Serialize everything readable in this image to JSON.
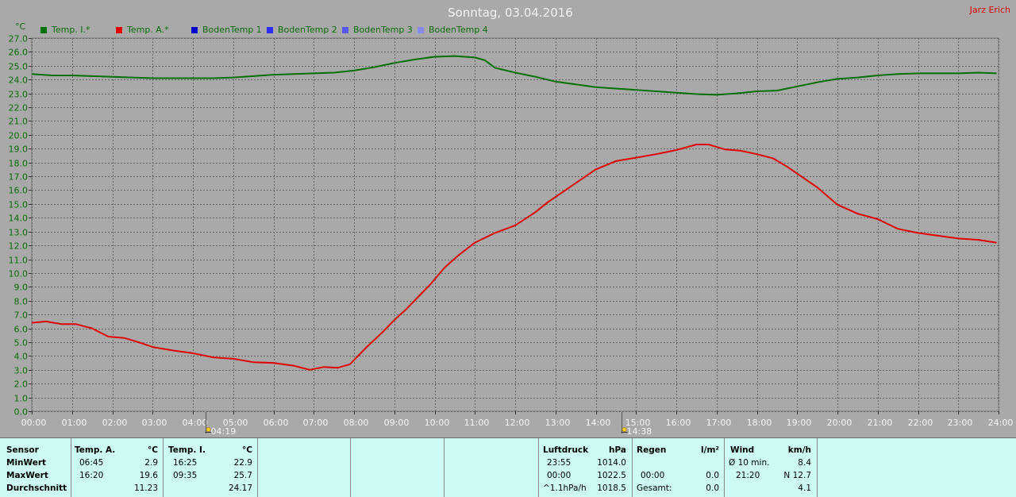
{
  "header": {
    "title": "Sonntag, 03.04.2016",
    "author": "Jarz Erich"
  },
  "legend": [
    {
      "label": "Temp. I.*",
      "color": "#007000"
    },
    {
      "label": "Temp. A.*",
      "color": "#e00000"
    },
    {
      "label": "BodenTemp 1",
      "color": "#0000c8"
    },
    {
      "label": "BodenTemp 2",
      "color": "#2c2cf0"
    },
    {
      "label": "BodenTemp 3",
      "color": "#5858f0"
    },
    {
      "label": "BodenTemp 4",
      "color": "#8888f0"
    }
  ],
  "chart_data": {
    "type": "line",
    "title": "Sonntag, 03.04.2016",
    "ylabel": "°C",
    "ylim": [
      0,
      27
    ],
    "xlim": [
      0,
      24
    ],
    "y_ticks": [
      "0.0",
      "1.0",
      "2.0",
      "3.0",
      "4.0",
      "5.0",
      "6.0",
      "7.0",
      "8.0",
      "9.0",
      "10.0",
      "11.0",
      "12.0",
      "13.0",
      "14.0",
      "15.0",
      "16.0",
      "17.0",
      "18.0",
      "19.0",
      "20.0",
      "21.0",
      "22.0",
      "23.0",
      "24.0",
      "25.0",
      "26.0",
      "27.0"
    ],
    "x_ticks": [
      "00:00",
      "01:00",
      "02:00",
      "03:00",
      "04:00",
      "05:00",
      "06:00",
      "07:00",
      "08:00",
      "09:00",
      "10:00",
      "11:00",
      "12:00",
      "13:00",
      "14:00",
      "15:00",
      "16:00",
      "17:00",
      "18:00",
      "19:00",
      "20:00",
      "21:00",
      "22:00",
      "23:00",
      "24:00"
    ],
    "grid": true,
    "legend_position": "top-left",
    "series": [
      {
        "name": "Temp. I.*",
        "color": "#007000",
        "x": [
          0,
          0.5,
          1,
          1.5,
          2,
          2.5,
          3,
          3.5,
          4,
          4.5,
          5,
          5.5,
          6,
          6.5,
          7,
          7.5,
          8,
          8.5,
          9,
          9.5,
          10,
          10.5,
          11,
          11.25,
          11.5,
          12,
          12.5,
          13,
          13.5,
          14,
          14.5,
          15,
          15.5,
          16,
          16.5,
          17,
          17.5,
          18,
          18.5,
          19,
          19.5,
          20,
          20.5,
          21,
          21.5,
          22,
          22.5,
          23,
          23.5,
          23.95
        ],
        "y": [
          24.4,
          24.3,
          24.3,
          24.25,
          24.2,
          24.15,
          24.1,
          24.1,
          24.1,
          24.1,
          24.15,
          24.25,
          24.35,
          24.4,
          24.45,
          24.5,
          24.65,
          24.9,
          25.2,
          25.45,
          25.65,
          25.7,
          25.6,
          25.4,
          24.85,
          24.5,
          24.2,
          23.85,
          23.65,
          23.45,
          23.35,
          23.25,
          23.15,
          23.05,
          22.95,
          22.9,
          23.0,
          23.15,
          23.2,
          23.5,
          23.8,
          24.05,
          24.15,
          24.3,
          24.4,
          24.45,
          24.45,
          24.45,
          24.5,
          24.45
        ]
      },
      {
        "name": "Temp. A.*",
        "color": "#e00000",
        "x": [
          0,
          0.35,
          0.75,
          1.1,
          1.5,
          1.9,
          2.3,
          2.7,
          3,
          3.5,
          4,
          4.5,
          5,
          5.5,
          6,
          6.5,
          6.9,
          7.25,
          7.6,
          7.9,
          8.3,
          8.7,
          9,
          9.3,
          9.6,
          9.9,
          10.25,
          10.6,
          11,
          11.5,
          12,
          12.5,
          12.8,
          13.2,
          13.6,
          14,
          14.5,
          15,
          15.5,
          16,
          16.5,
          16.8,
          17.2,
          17.6,
          18,
          18.4,
          18.75,
          19.1,
          19.5,
          20,
          20.5,
          21,
          21.5,
          22,
          22.5,
          23,
          23.5,
          23.95
        ],
        "y": [
          6.4,
          6.5,
          6.3,
          6.3,
          6.0,
          5.4,
          5.3,
          4.95,
          4.65,
          4.4,
          4.2,
          3.9,
          3.8,
          3.55,
          3.5,
          3.3,
          3.0,
          3.2,
          3.15,
          3.4,
          4.6,
          5.7,
          6.6,
          7.4,
          8.3,
          9.2,
          10.4,
          11.3,
          12.2,
          12.9,
          13.45,
          14.4,
          15.1,
          15.9,
          16.7,
          17.5,
          18.1,
          18.35,
          18.6,
          18.9,
          19.3,
          19.3,
          18.95,
          18.85,
          18.6,
          18.3,
          17.7,
          17.0,
          16.2,
          14.95,
          14.3,
          13.9,
          13.2,
          12.9,
          12.7,
          12.5,
          12.4,
          12.2
        ]
      },
      {
        "name": "BodenTemp 1",
        "color": "#0000c8",
        "x": [],
        "y": []
      },
      {
        "name": "BodenTemp 2",
        "color": "#2c2cf0",
        "x": [],
        "y": []
      },
      {
        "name": "BodenTemp 3",
        "color": "#5858f0",
        "x": [],
        "y": []
      },
      {
        "name": "BodenTemp 4",
        "color": "#8888f0",
        "x": [],
        "y": []
      }
    ],
    "annotations": [
      {
        "label": "04:19",
        "x": 4.317,
        "icon": "sunrise-icon"
      },
      {
        "label": "14:38",
        "x": 14.633,
        "icon": "sunset-icon"
      }
    ]
  },
  "stats": {
    "temp_a": {
      "header_sensor": "Sensor",
      "header_name": "Temp. A.",
      "header_unit": "°C",
      "min_label": "MinWert",
      "min_time": "06:45",
      "min_value": "2.9",
      "max_label": "MaxWert",
      "max_time": "16:20",
      "max_value": "19.6",
      "avg_label": "Durchschnitt",
      "avg_value": "11.23"
    },
    "temp_i": {
      "header_name": "Temp. I.",
      "header_unit": "°C",
      "min_time": "16:25",
      "min_value": "22.9",
      "max_time": "09:35",
      "max_value": "25.7",
      "avg_value": "24.17"
    },
    "pressure": {
      "header_name": "Luftdruck",
      "header_unit": "hPa",
      "r1_label": "23:55",
      "r1_value": "1014.0",
      "r2_label": "00:00",
      "r2_value": "1022.5",
      "r3_label": "^1.1hPa/h",
      "r3_value": "1018.5"
    },
    "rain": {
      "header_name": "Regen",
      "header_unit": "l/m²",
      "r2_label": "00:00",
      "r2_value": "0.0",
      "r3_label": "Gesamt:",
      "r3_value": "0.0"
    },
    "wind": {
      "header_name": "Wind",
      "header_unit": "km/h",
      "r1_label": "Ø 10 min.",
      "r1_value": "8.4",
      "r2_label": "21:20",
      "r2_value": "N 12.7",
      "r3_value": "4.1"
    }
  }
}
